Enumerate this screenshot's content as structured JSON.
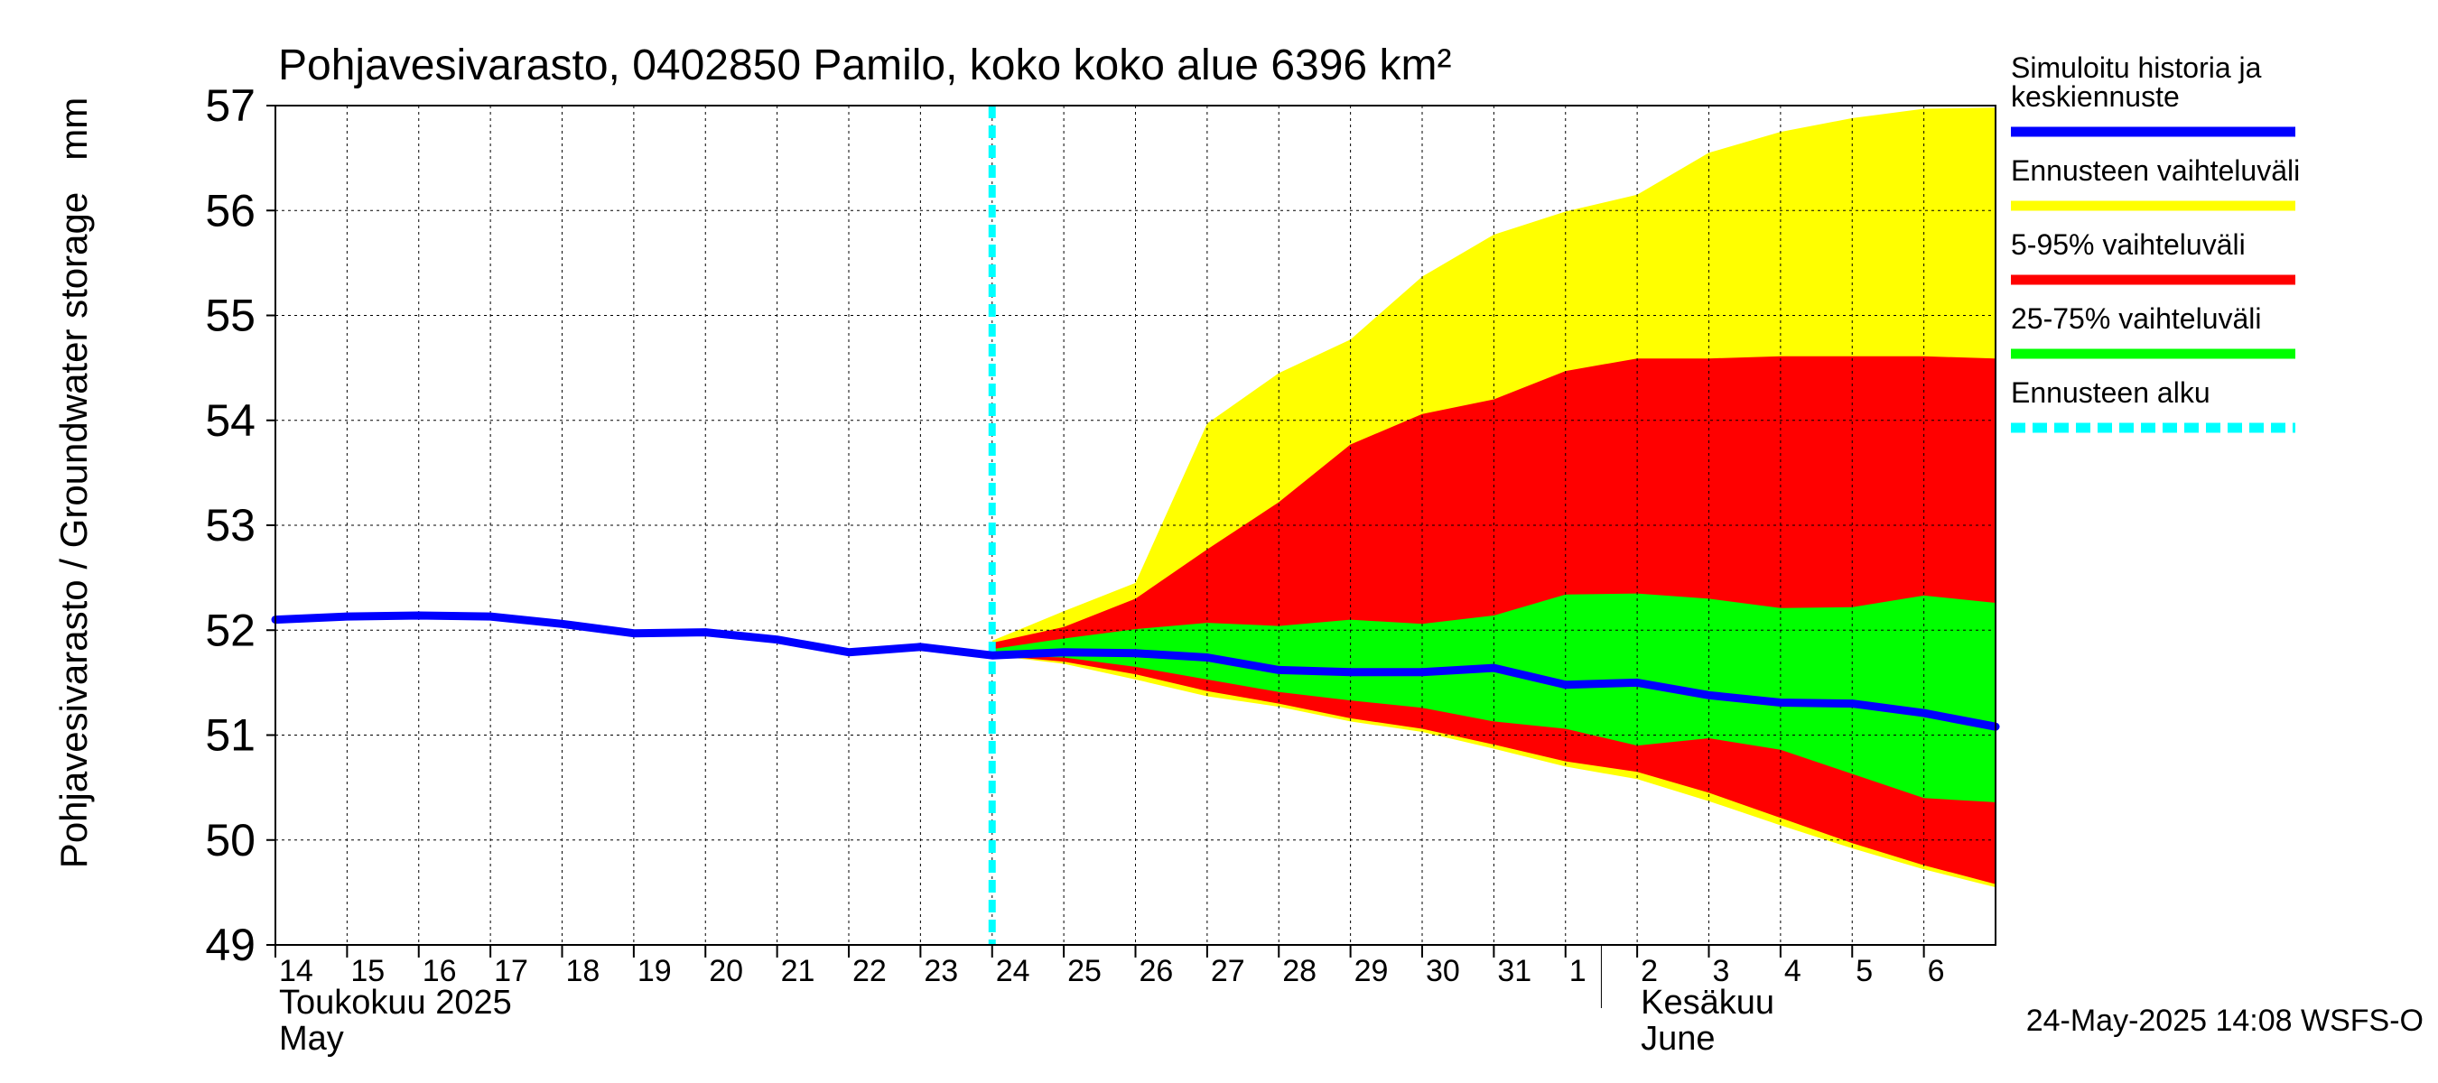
{
  "chart_data": {
    "type": "area",
    "title": "Pohjavesivarasto, 0402850 Pamilo, koko koko alue 6396 km²",
    "ylabel": "Pohjavesivarasto / Groundwater storage   mm",
    "ylim": [
      49,
      57
    ],
    "yticks": [
      49,
      50,
      51,
      52,
      53,
      54,
      55,
      56,
      57
    ],
    "xlim": [
      0,
      24
    ],
    "grid": true,
    "x_tick_labels": [
      "14",
      "15",
      "16",
      "17",
      "18",
      "19",
      "20",
      "21",
      "22",
      "23",
      "24",
      "25",
      "26",
      "27",
      "28",
      "29",
      "30",
      "31",
      "1",
      "2",
      "3",
      "4",
      "5",
      "6"
    ],
    "month_labels": [
      {
        "x": 0,
        "lines": [
          "Toukokuu  2025",
          "May"
        ]
      },
      {
        "x": 19,
        "lines": [
          "Kesäkuu",
          "June"
        ]
      }
    ],
    "month_separator_x": 18.5,
    "forecast_start_x": 10,
    "history": {
      "name": "Simuloitu historia ja keskiennuste",
      "x": [
        0,
        1,
        2,
        3,
        4,
        5,
        6,
        7,
        8,
        9,
        10,
        11,
        12,
        13,
        14,
        15,
        16,
        17,
        18,
        19,
        20,
        21,
        22,
        23,
        24
      ],
      "y": [
        52.1,
        52.13,
        52.14,
        52.13,
        52.06,
        51.97,
        51.98,
        51.91,
        51.79,
        51.84,
        51.76,
        51.79,
        51.78,
        51.74,
        51.62,
        51.6,
        51.6,
        51.64,
        51.48,
        51.5,
        51.38,
        51.31,
        51.3,
        51.21,
        51.08
      ]
    },
    "bands": [
      {
        "name": "Ennusteen vaihteluväli",
        "color": "#ffff00",
        "x": [
          10,
          11,
          12,
          13,
          14,
          15,
          16,
          17,
          18,
          19,
          20,
          21,
          22,
          23,
          24
        ],
        "upper": [
          51.9,
          52.18,
          52.45,
          53.97,
          54.45,
          54.77,
          55.37,
          55.77,
          55.99,
          56.15,
          56.55,
          56.75,
          56.88,
          56.97,
          56.98
        ],
        "lower": [
          51.76,
          51.68,
          51.53,
          51.37,
          51.27,
          51.13,
          51.03,
          50.87,
          50.7,
          50.58,
          50.37,
          50.14,
          49.92,
          49.72,
          49.55
        ]
      },
      {
        "name": "5-95% vaihteluväli",
        "color": "#ff0000",
        "x": [
          10,
          11,
          12,
          13,
          14,
          15,
          16,
          17,
          18,
          19,
          20,
          21,
          22,
          23,
          24
        ],
        "upper": [
          51.88,
          52.03,
          52.3,
          52.77,
          53.22,
          53.77,
          54.06,
          54.2,
          54.47,
          54.59,
          54.59,
          54.61,
          54.61,
          54.61,
          54.59
        ],
        "lower": [
          51.76,
          51.7,
          51.58,
          51.42,
          51.3,
          51.16,
          51.06,
          50.91,
          50.75,
          50.65,
          50.45,
          50.21,
          49.97,
          49.76,
          49.58
        ]
      },
      {
        "name": "25-75% vaihteluväli",
        "color": "#00ff00",
        "x": [
          10,
          11,
          12,
          13,
          14,
          15,
          16,
          17,
          18,
          19,
          20,
          21,
          22,
          23,
          24
        ],
        "upper": [
          51.82,
          51.92,
          52.01,
          52.07,
          52.04,
          52.1,
          52.06,
          52.14,
          52.34,
          52.35,
          52.3,
          52.21,
          52.22,
          52.33,
          52.26
        ],
        "lower": [
          51.76,
          51.74,
          51.65,
          51.53,
          51.41,
          51.33,
          51.26,
          51.13,
          51.06,
          50.9,
          50.97,
          50.86,
          50.63,
          50.4,
          50.36
        ]
      }
    ],
    "legend": {
      "placement": "right",
      "entries": [
        {
          "lines": [
            "Simuloitu historia ja",
            "keskiennuste"
          ],
          "color": "#0000ff",
          "style": "solid"
        },
        {
          "lines": [
            "Ennusteen vaihteluväli"
          ],
          "color": "#ffff00",
          "style": "solid"
        },
        {
          "lines": [
            "5-95% vaihteluväli"
          ],
          "color": "#ff0000",
          "style": "solid"
        },
        {
          "lines": [
            "25-75% vaihteluväli"
          ],
          "color": "#00ff00",
          "style": "solid"
        },
        {
          "lines": [
            "Ennusteen alku"
          ],
          "color": "#00ffff",
          "style": "dashed"
        }
      ]
    },
    "footer": "24-May-2025 14:08 WSFS-O"
  }
}
